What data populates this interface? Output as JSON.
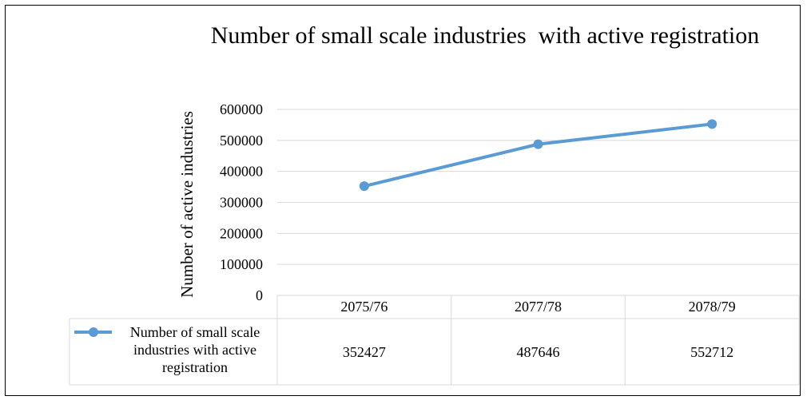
{
  "chart_data": {
    "type": "line",
    "title": "Number of small scale industries  with active registration",
    "ylabel": "Number of active industries",
    "xlabel": "",
    "categories": [
      "2075/76",
      "2077/78",
      "2078/79"
    ],
    "series": [
      {
        "name": "Number of small scale industries  with active registration",
        "name_lines": [
          "Number of small scale",
          "industries  with active",
          "registration"
        ],
        "values": [
          352427,
          487646,
          552712
        ]
      }
    ],
    "data_table_values": [
      "352427",
      "487646",
      "552712"
    ],
    "ylim": [
      0,
      600000
    ],
    "yticks": [
      "0",
      "100000",
      "200000",
      "300000",
      "400000",
      "500000",
      "600000"
    ],
    "grid": true,
    "legend": "data-table",
    "colors": {
      "series": "#5b9bd5",
      "grid": "#d9d9d9"
    }
  }
}
